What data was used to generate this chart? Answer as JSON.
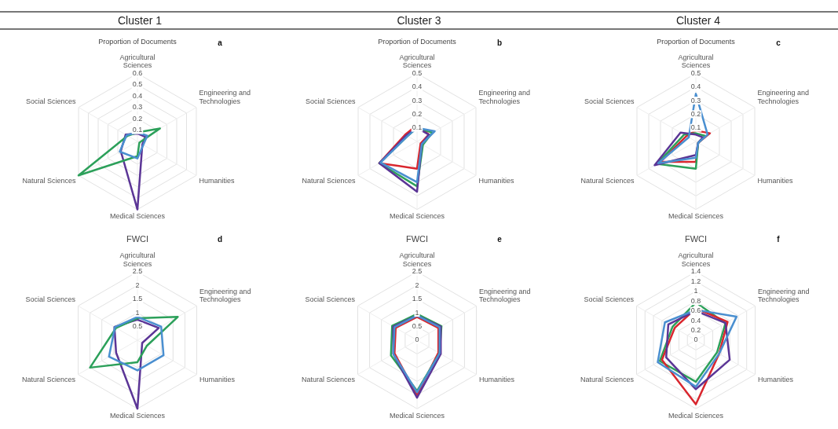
{
  "chart_data": [
    {
      "type": "radar",
      "title": "Cluster 1",
      "subtitle": "Proportion of Documents",
      "annotations": [
        "a"
      ],
      "categories": [
        "Agricultural Sciences",
        "Engineering and Technologies",
        "Humanities",
        "Medical Sciences",
        "Natural Sciences",
        "Social Sciences"
      ],
      "ylim": [
        0,
        0.6
      ],
      "yticks": [
        0.1,
        0.2,
        0.3,
        0.4,
        0.5,
        0.6
      ],
      "grid": true,
      "marker": "none",
      "series": [
        {
          "color": "#4a8fd0",
          "values": [
            0.08,
            0.1,
            0.06,
            0.15,
            0.18,
            0.11
          ]
        },
        {
          "color": "#2ca05a",
          "values": [
            0.08,
            0.23,
            0.02,
            0.13,
            0.6,
            0.1
          ]
        },
        {
          "color": "#5b3596",
          "values": [
            0.07,
            0.08,
            0.05,
            0.6,
            0.17,
            0.12
          ]
        }
      ]
    },
    {
      "type": "radar",
      "title": "Cluster 3",
      "subtitle": "Proportion of Documents",
      "annotations": [
        "b"
      ],
      "categories": [
        "Agricultural Sciences",
        "Engineering and Technologies",
        "Humanities",
        "Medical Sciences",
        "Natural Sciences",
        "Social Sciences"
      ],
      "ylim": [
        0,
        0.5
      ],
      "yticks": [
        0.1,
        0.2,
        0.3,
        0.4,
        0.5
      ],
      "grid": true,
      "marker": "none",
      "series": [
        {
          "color": "#4a8fd0",
          "values": [
            0.1,
            0.15,
            0.04,
            0.3,
            0.31,
            0.08
          ]
        },
        {
          "color": "#5b3596",
          "values": [
            0.1,
            0.1,
            0.04,
            0.37,
            0.32,
            0.09
          ]
        },
        {
          "color": "#2ca05a",
          "values": [
            0.1,
            0.13,
            0.05,
            0.33,
            0.32,
            0.08
          ]
        },
        {
          "color": "#d9262e",
          "values": [
            0.12,
            0.1,
            0.03,
            0.2,
            0.32,
            0.1
          ]
        }
      ]
    },
    {
      "type": "radar",
      "title": "Cluster 4",
      "subtitle": "Proportion of Documents",
      "annotations": [
        "c"
      ],
      "categories": [
        "Agricultural Sciences",
        "Engineering and Technologies",
        "Humanities",
        "Medical Sciences",
        "Natural Sciences",
        "Social Sciences"
      ],
      "ylim": [
        0,
        0.5
      ],
      "yticks": [
        0.1,
        0.2,
        0.3,
        0.4,
        0.5
      ],
      "grid": true,
      "marker": "none",
      "series": [
        {
          "color": "#4a8fd0",
          "values": [
            0.35,
            0.1,
            0.02,
            0.12,
            0.32,
            0.06
          ]
        },
        {
          "color": "#5b3596",
          "values": [
            0.05,
            0.06,
            0.02,
            0.1,
            0.35,
            0.13
          ]
        },
        {
          "color": "#2ca05a",
          "values": [
            0.06,
            0.08,
            0.02,
            0.2,
            0.33,
            0.1
          ]
        },
        {
          "color": "#d9262e",
          "values": [
            0.08,
            0.12,
            0.02,
            0.15,
            0.3,
            0.08
          ]
        }
      ]
    },
    {
      "type": "radar",
      "title": "FWCI",
      "annotations": [
        "d"
      ],
      "categories": [
        "Agricultural Sciences",
        "Engineering and Technologies",
        "Humanities",
        "Medical Sciences",
        "Natural Sciences",
        "Social Sciences"
      ],
      "ylim": [
        0,
        2.5
      ],
      "yticks": [
        0.5,
        1,
        1.5,
        2,
        2.5
      ],
      "grid": true,
      "marker": "none",
      "series": [
        {
          "color": "#4a8fd0",
          "values": [
            0.85,
            1.0,
            1.1,
            1.1,
            1.2,
            0.95
          ]
        },
        {
          "color": "#2ca05a",
          "values": [
            0.8,
            1.7,
            0.4,
            0.8,
            2.0,
            0.9
          ]
        },
        {
          "color": "#5b3596",
          "values": [
            0.75,
            0.9,
            0.2,
            2.5,
            0.9,
            0.97
          ]
        }
      ]
    },
    {
      "type": "radar",
      "title": "FWCI",
      "annotations": [
        "e"
      ],
      "categories": [
        "Agricultural Sciences",
        "Engineering and Technologies",
        "Humanities",
        "Medical Sciences",
        "Natural Sciences",
        "Social Sciences"
      ],
      "ylim": [
        0,
        2.5
      ],
      "yticks": [
        0,
        0.5,
        1,
        1.5,
        2,
        2.5
      ],
      "grid": true,
      "marker": "none",
      "series": [
        {
          "color": "#4a8fd0",
          "values": [
            0.9,
            0.95,
            0.95,
            1.9,
            1.0,
            0.95
          ]
        },
        {
          "color": "#5b3596",
          "values": [
            0.9,
            1.0,
            1.0,
            2.1,
            1.0,
            1.0
          ]
        },
        {
          "color": "#2ca05a",
          "values": [
            0.96,
            1.03,
            0.95,
            1.85,
            1.1,
            1.05
          ]
        },
        {
          "color": "#d9262e",
          "values": [
            0.85,
            0.9,
            0.9,
            2.0,
            0.95,
            0.9
          ]
        }
      ]
    },
    {
      "type": "radar",
      "title": "FWCI",
      "annotations": [
        "f"
      ],
      "categories": [
        "Agricultural Sciences",
        "Engineering and Technologies",
        "Humanities",
        "Medical Sciences",
        "Natural Sciences",
        "Social Sciences"
      ],
      "ylim": [
        0,
        1.4
      ],
      "yticks": [
        0,
        0.2,
        0.4,
        0.6,
        0.8,
        1,
        1.2,
        1.4
      ],
      "grid": true,
      "marker": "none",
      "series": [
        {
          "color": "#4a8fd0",
          "values": [
            0.62,
            0.96,
            0.55,
            0.95,
            0.9,
            0.73
          ]
        },
        {
          "color": "#5b3596",
          "values": [
            0.6,
            0.7,
            0.8,
            1.0,
            0.7,
            0.65
          ]
        },
        {
          "color": "#d9262e",
          "values": [
            0.65,
            0.75,
            0.55,
            1.31,
            0.8,
            0.5
          ]
        },
        {
          "color": "#2ca05a",
          "values": [
            0.77,
            0.7,
            0.5,
            0.85,
            0.85,
            0.55
          ]
        }
      ]
    }
  ]
}
